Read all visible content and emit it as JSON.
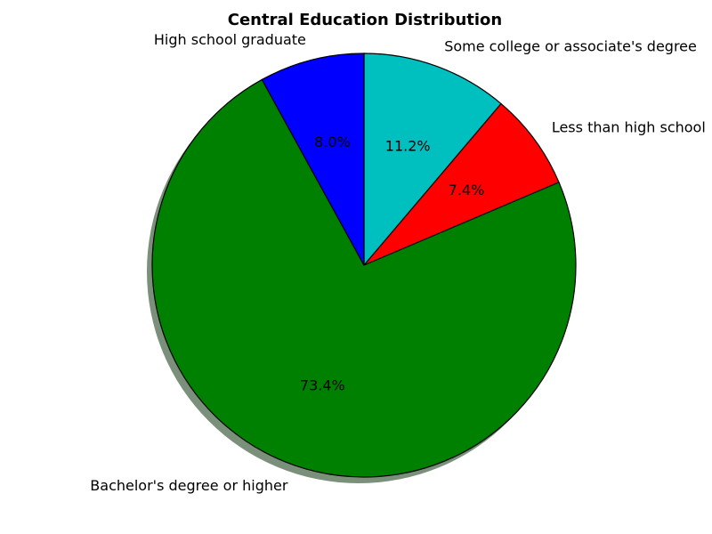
{
  "chart_data": {
    "type": "pie",
    "title": "Central Education Distribution",
    "slices": [
      {
        "label": "Some college or associate's degree",
        "value": 11.2,
        "display": "11.2%",
        "color": "#00bfbf"
      },
      {
        "label": "Less than high school",
        "value": 7.4,
        "display": "7.4%",
        "color": "#ff0000"
      },
      {
        "label": "Bachelor's degree or higher",
        "value": 73.4,
        "display": "73.4%",
        "color": "#008000"
      },
      {
        "label": "High school graduate",
        "value": 8.0,
        "display": "8.0%",
        "color": "#0000ff"
      }
    ],
    "start_angle_deg": 90,
    "direction": "clockwise",
    "shadow": true,
    "legend": "none"
  }
}
